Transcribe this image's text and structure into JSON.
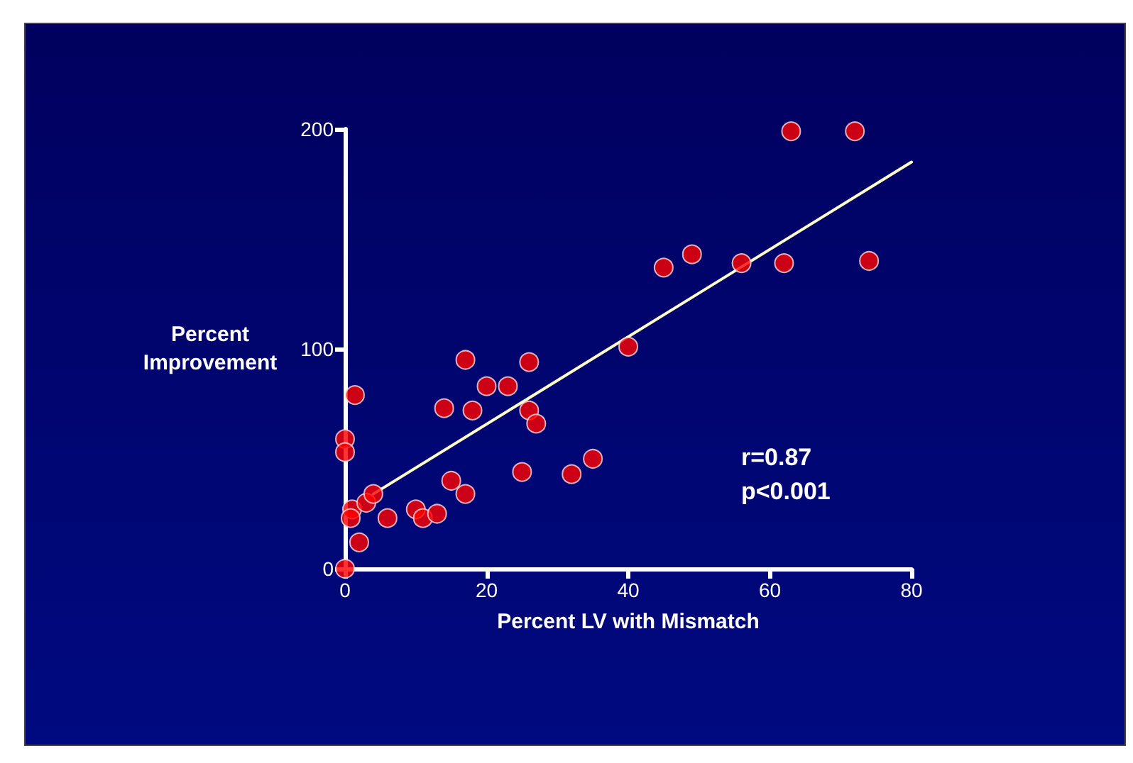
{
  "chart_data": {
    "type": "scatter",
    "xlabel": "Percent LV with Mismatch",
    "ylabel": "Percent Improvement",
    "xlim": [
      0,
      80
    ],
    "xticks": [
      0,
      20,
      40,
      60,
      80
    ],
    "ylim": [
      0,
      200
    ],
    "yticks": [
      0,
      100,
      200
    ],
    "grid": false,
    "marker": "circle",
    "annotations": [
      "r=0.87",
      "p<0.001"
    ],
    "series": [
      {
        "color": "#ff0000",
        "x": [
          0,
          0,
          0,
          1.4,
          1,
          0.8,
          2,
          3,
          4,
          6,
          10,
          11,
          13,
          15,
          17,
          14,
          17,
          18,
          20,
          23,
          26,
          26,
          27,
          25,
          32,
          35,
          40,
          45,
          49,
          56,
          62,
          74,
          63,
          72
        ],
        "values": [
          0,
          59,
          53,
          79,
          27,
          23,
          12,
          30,
          34,
          23,
          27,
          23,
          25,
          40,
          34,
          73,
          95,
          72,
          83,
          83,
          94,
          72,
          66,
          44,
          43,
          50,
          101,
          137,
          143,
          139,
          139,
          140,
          199,
          199
        ]
      },
      {
        "type": "line",
        "color": "#ffffcc",
        "marker": "none",
        "x": [
          4,
          80
        ],
        "values": [
          34,
          185
        ]
      }
    ]
  }
}
